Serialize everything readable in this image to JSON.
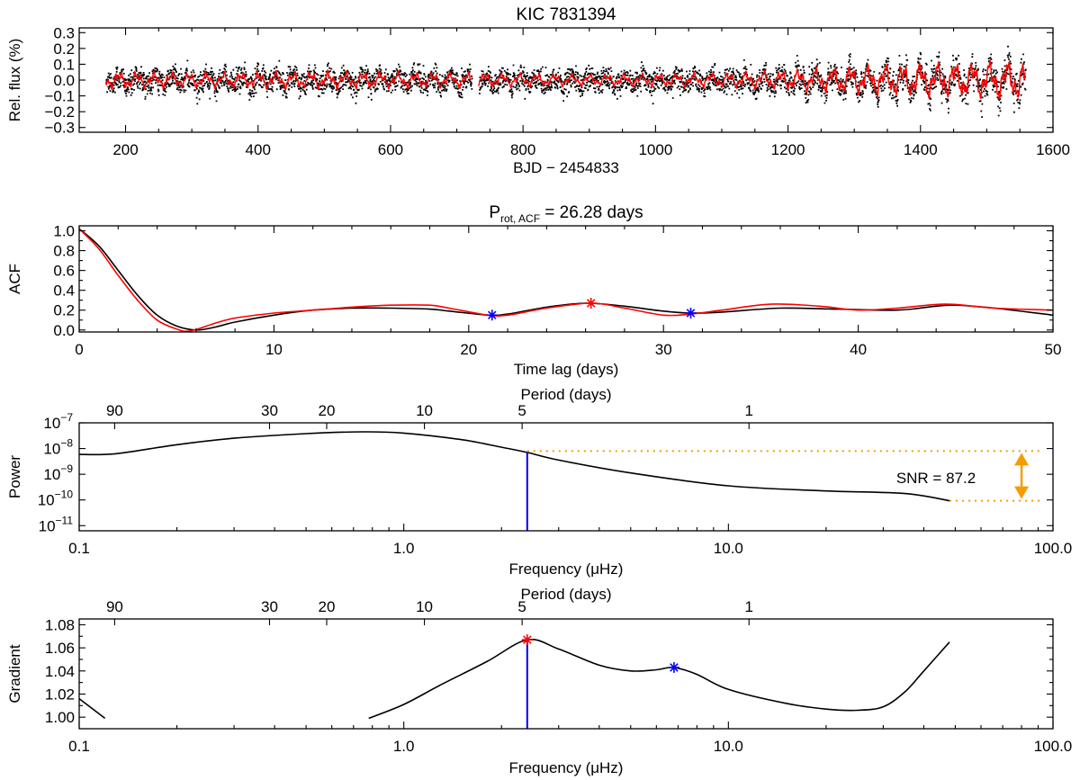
{
  "chart_data": [
    {
      "panel": "lightcurve",
      "type": "scatter",
      "title": "KIC 7831394",
      "xlabel": "BJD − 2454833",
      "ylabel": "Rel. flux (%)",
      "xlim": [
        130,
        1600
      ],
      "ylim": [
        -0.33,
        0.33
      ],
      "xticks": [
        "200",
        "400",
        "600",
        "800",
        "1000",
        "1200",
        "1400",
        "1600"
      ],
      "yticks": [
        "−0.3",
        "−0.2",
        "−0.1",
        "0.0",
        "0.1",
        "0.2",
        "0.3"
      ],
      "data_span": [
        170,
        1558
      ],
      "gap": [
        722,
        733
      ],
      "amplitude_envelope": {
        "x": [
          170,
          300,
          500,
          700,
          900,
          1100,
          1200,
          1300,
          1400,
          1500,
          1558
        ],
        "y": [
          0.06,
          0.05,
          0.06,
          0.05,
          0.04,
          0.05,
          0.07,
          0.1,
          0.12,
          0.13,
          0.14
        ]
      },
      "series": [
        {
          "name": "",
          "color": "#000000",
          "style": "points"
        },
        {
          "name": "",
          "color": "#ff0000",
          "style": "line"
        }
      ]
    },
    {
      "panel": "acf",
      "type": "line",
      "title_main": "P",
      "title_sub": "rot, ACF",
      "title_value": " = 26.28 days",
      "xlabel": "Time lag (days)",
      "ylabel": "ACF",
      "xlim": [
        0,
        50
      ],
      "ylim": [
        -0.02,
        1.05
      ],
      "xticks": [
        "0",
        "10",
        "20",
        "30",
        "40",
        "50"
      ],
      "yticks": [
        "0.0",
        "0.2",
        "0.4",
        "0.6",
        "0.8",
        "1.0"
      ],
      "series": [
        {
          "name": "",
          "color": "#000000",
          "x": [
            0,
            1,
            2,
            3,
            4,
            5,
            6,
            7,
            8,
            10,
            12,
            14,
            16,
            18,
            19,
            21,
            22,
            24,
            26,
            28,
            30,
            31.4,
            33,
            36,
            39,
            42,
            44,
            45,
            47,
            50
          ],
          "y": [
            1.02,
            0.85,
            0.6,
            0.35,
            0.15,
            0.04,
            0.0,
            0.03,
            0.08,
            0.15,
            0.2,
            0.22,
            0.22,
            0.21,
            0.19,
            0.15,
            0.16,
            0.23,
            0.27,
            0.24,
            0.19,
            0.17,
            0.18,
            0.22,
            0.21,
            0.2,
            0.24,
            0.25,
            0.22,
            0.15
          ]
        },
        {
          "name": "",
          "color": "#ff0000",
          "x": [
            0,
            1,
            2,
            3,
            4,
            5,
            5.7,
            7,
            8,
            10,
            12,
            14,
            16,
            18,
            19,
            21,
            22,
            24,
            26.3,
            28,
            30,
            31.4,
            33,
            35.5,
            38,
            40,
            42,
            44.5,
            47,
            50
          ],
          "y": [
            1.02,
            0.82,
            0.55,
            0.3,
            0.1,
            0.01,
            -0.01,
            0.07,
            0.12,
            0.17,
            0.2,
            0.23,
            0.25,
            0.25,
            0.22,
            0.15,
            0.15,
            0.22,
            0.27,
            0.22,
            0.15,
            0.16,
            0.2,
            0.26,
            0.24,
            0.2,
            0.22,
            0.26,
            0.22,
            0.2
          ]
        }
      ],
      "markers": [
        {
          "x": 21.2,
          "y": 0.15,
          "color": "#0000ff",
          "symbol": "asterisk"
        },
        {
          "x": 26.28,
          "y": 0.27,
          "color": "#ff0000",
          "symbol": "asterisk"
        },
        {
          "x": 31.4,
          "y": 0.17,
          "color": "#0000ff",
          "symbol": "asterisk"
        }
      ]
    },
    {
      "panel": "power",
      "type": "line",
      "xscale": "log",
      "yscale": "log",
      "xlabel": "Frequency (μHz)",
      "top_xlabel": "Period (days)",
      "ylabel": "Power",
      "xlim": [
        0.1,
        100
      ],
      "ylim_exp": [
        -11.2,
        -7
      ],
      "xticks": [
        "0.1",
        "1.0",
        "10.0",
        "100.0"
      ],
      "top_ticks": [
        {
          "label": "90",
          "period_days": 90
        },
        {
          "label": "30",
          "period_days": 30
        },
        {
          "label": "20",
          "period_days": 20
        },
        {
          "label": "10",
          "period_days": 10
        },
        {
          "label": "5",
          "period_days": 5
        },
        {
          "label": "1",
          "period_days": 1
        }
      ],
      "yticks": [
        {
          "base": "10",
          "exp": "−7",
          "value_exp": -7
        },
        {
          "base": "10",
          "exp": "−8",
          "value_exp": -8
        },
        {
          "base": "10",
          "exp": "−9",
          "value_exp": -9
        },
        {
          "base": "10",
          "exp": "−10",
          "value_exp": -10
        },
        {
          "base": "10",
          "exp": "−11",
          "value_exp": -11
        }
      ],
      "series": [
        {
          "name": "",
          "color": "#000000",
          "freq_uHz": [
            0.1,
            0.13,
            0.2,
            0.3,
            0.5,
            0.75,
            1.0,
            1.5,
            2.0,
            2.4,
            3.0,
            5.0,
            10.0,
            20.0,
            35.0,
            48.0
          ],
          "log10_power": [
            -8.23,
            -8.2,
            -7.85,
            -7.6,
            -7.42,
            -7.35,
            -7.4,
            -7.65,
            -7.95,
            -8.15,
            -8.45,
            -8.95,
            -9.45,
            -9.65,
            -9.75,
            -10.03
          ]
        }
      ],
      "peak_line": {
        "freq_uHz": 2.4,
        "color": "#0000ff"
      },
      "snr_band": {
        "upper_log10": -8.1,
        "lower_log10": -10.03,
        "color": "#f59c00",
        "arrow_freq_uHz": 80
      },
      "snr_label": "SNR = 87.2"
    },
    {
      "panel": "gradient",
      "type": "line",
      "xscale": "log",
      "xlabel": "Frequency (μHz)",
      "top_xlabel": "Period (days)",
      "ylabel": "Gradient",
      "xlim": [
        0.1,
        100
      ],
      "ylim": [
        0.99,
        1.085
      ],
      "xticks": [
        "0.1",
        "1.0",
        "10.0",
        "100.0"
      ],
      "top_ticks": [
        {
          "label": "90",
          "period_days": 90
        },
        {
          "label": "30",
          "period_days": 30
        },
        {
          "label": "20",
          "period_days": 20
        },
        {
          "label": "10",
          "period_days": 10
        },
        {
          "label": "5",
          "period_days": 5
        },
        {
          "label": "1",
          "period_days": 1
        }
      ],
      "yticks": [
        "1.00",
        "1.02",
        "1.04",
        "1.06",
        "1.08"
      ],
      "series": [
        {
          "name": "",
          "color": "#000000",
          "freq_uHz": [
            0.1,
            0.12,
            0.78,
            1.0,
            1.3,
            1.8,
            2.4,
            3.0,
            4.0,
            5.0,
            6.0,
            6.8,
            8.0,
            10.0,
            15.0,
            20.0,
            25.0,
            30.0,
            35.0,
            40.0,
            48.0
          ],
          "gradient": [
            1.016,
            0.999,
            0.999,
            1.011,
            1.028,
            1.048,
            1.067,
            1.059,
            1.045,
            1.04,
            1.041,
            1.043,
            1.037,
            1.024,
            1.012,
            1.007,
            1.006,
            1.009,
            1.022,
            1.04,
            1.065
          ]
        }
      ],
      "peak_line": {
        "freq_uHz": 2.4,
        "color": "#0000ff"
      },
      "markers": [
        {
          "freq_uHz": 2.4,
          "value": 1.067,
          "color": "#ff0000",
          "symbol": "asterisk"
        },
        {
          "freq_uHz": 6.8,
          "value": 1.043,
          "color": "#0000ff",
          "symbol": "asterisk"
        }
      ]
    }
  ]
}
